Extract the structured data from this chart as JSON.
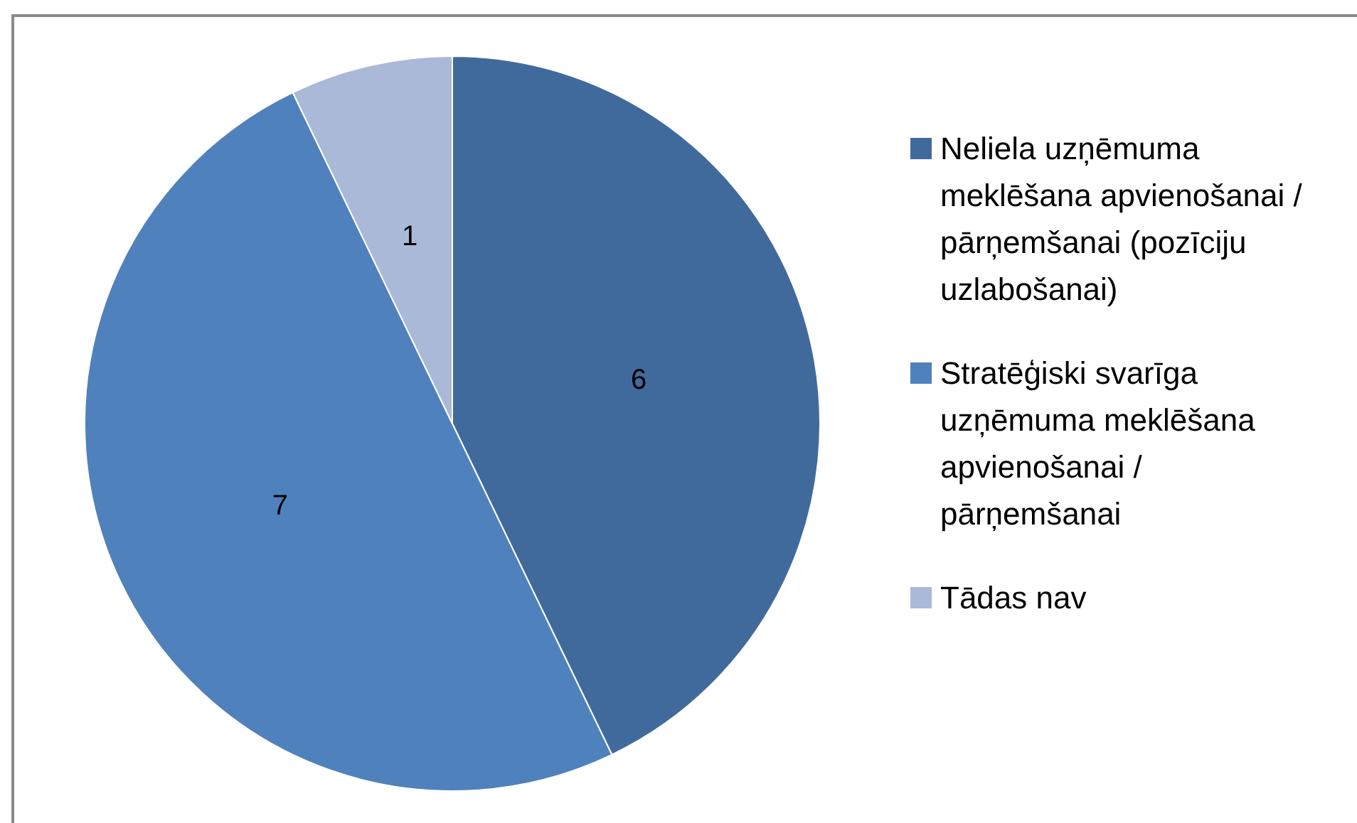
{
  "chart_data": {
    "type": "pie",
    "categories": [
      "Neliela uzņēmuma meklēšana apvienošanai / pārņemšanai (pozīciju uzlabošanai)",
      "Stratēģiski svarīga uzņēmuma meklēšana apvienošanai / pārņemšanai",
      "Tādas nav"
    ],
    "values": [
      6,
      7,
      1
    ],
    "colors": [
      "#416a9c",
      "#4f81bd",
      "#aab9d7"
    ],
    "data_labels": true,
    "legend": "right"
  }
}
